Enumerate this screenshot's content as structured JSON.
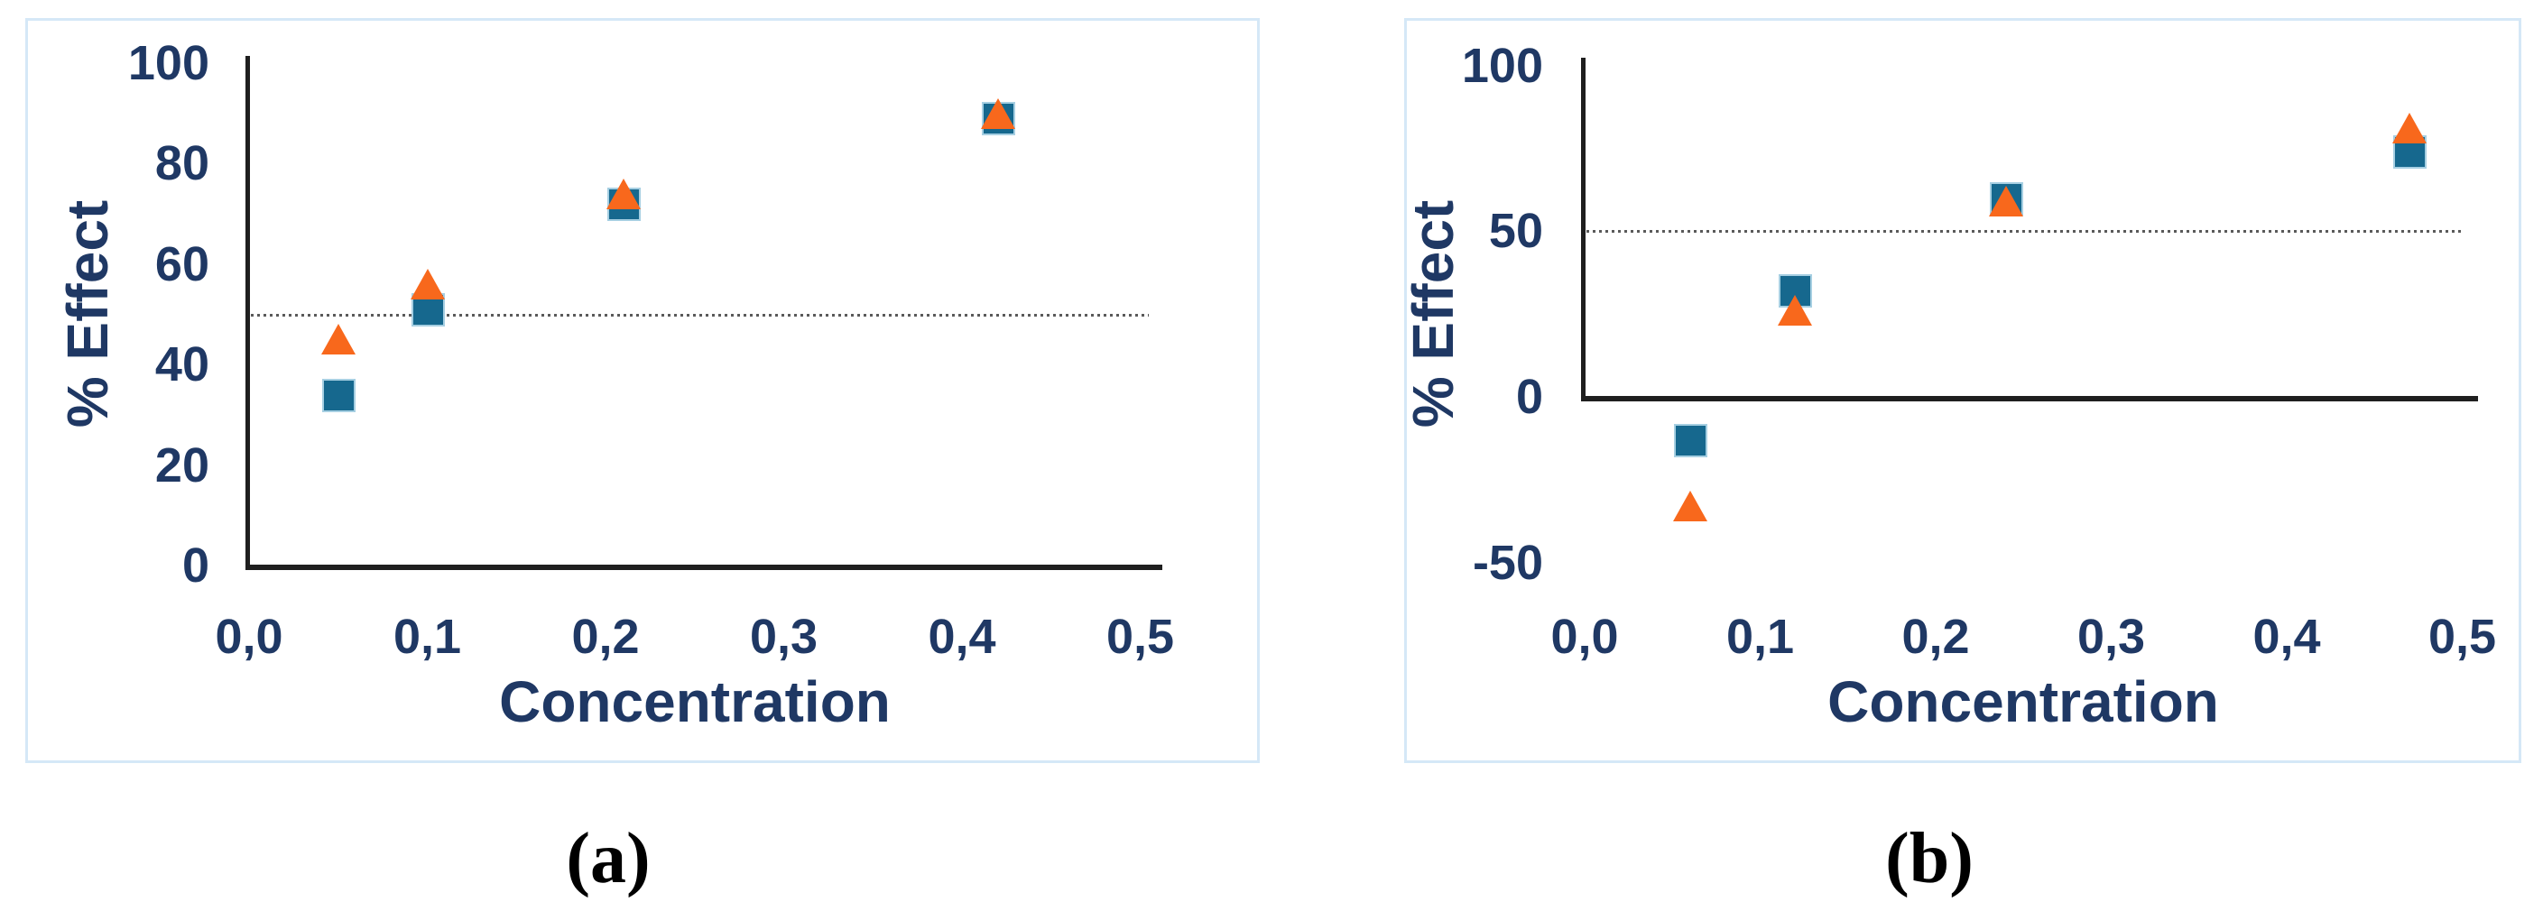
{
  "chart_data": [
    {
      "type": "scatter",
      "panel_label": "(a)",
      "xlabel": "Concentration",
      "ylabel": "% Effect",
      "xlim": [
        0,
        0.5
      ],
      "ylim": [
        0,
        100
      ],
      "x_tick_labels": [
        "0,0",
        "0,1",
        "0,2",
        "0,3",
        "0,4",
        "0,5"
      ],
      "x_tick_values": [
        0,
        0.1,
        0.2,
        0.3,
        0.4,
        0.5
      ],
      "y_tick_labels": [
        "100",
        "80",
        "60",
        "40",
        "20",
        "0"
      ],
      "y_tick_values": [
        100,
        80,
        60,
        40,
        20,
        0
      ],
      "reference_line": {
        "y": 50,
        "style": "dotted",
        "color": "#5a5a5a"
      },
      "grid": false,
      "legend": "none",
      "series": [
        {
          "name": "square-series",
          "marker": "square",
          "color": "#16688e",
          "points": [
            {
              "x": 0.05,
              "y": 34
            },
            {
              "x": 0.1,
              "y": 51
            },
            {
              "x": 0.21,
              "y": 72
            },
            {
              "x": 0.42,
              "y": 89
            }
          ]
        },
        {
          "name": "triangle-series",
          "marker": "triangle",
          "color": "#f8681c",
          "points": [
            {
              "x": 0.05,
              "y": 45
            },
            {
              "x": 0.1,
              "y": 56
            },
            {
              "x": 0.21,
              "y": 74
            },
            {
              "x": 0.42,
              "y": 90
            }
          ]
        }
      ]
    },
    {
      "type": "scatter",
      "panel_label": "(b)",
      "xlabel": "Concentration",
      "ylabel": "% Effect",
      "xlim": [
        0,
        0.5
      ],
      "ylim": [
        -50,
        100
      ],
      "x_tick_labels": [
        "0,0",
        "0,1",
        "0,2",
        "0,3",
        "0,4",
        "0,5"
      ],
      "x_tick_values": [
        0,
        0.1,
        0.2,
        0.3,
        0.4,
        0.5
      ],
      "y_tick_labels": [
        "100",
        "50",
        "0",
        "-50"
      ],
      "y_tick_values": [
        100,
        50,
        0,
        -50
      ],
      "reference_line": {
        "y": 50,
        "style": "dotted",
        "color": "#5a5a5a"
      },
      "grid": false,
      "legend": "none",
      "series": [
        {
          "name": "square-series",
          "marker": "square",
          "color": "#16688e",
          "points": [
            {
              "x": 0.06,
              "y": -13
            },
            {
              "x": 0.12,
              "y": 32
            },
            {
              "x": 0.24,
              "y": 60
            },
            {
              "x": 0.47,
              "y": 74
            }
          ]
        },
        {
          "name": "triangle-series",
          "marker": "triangle",
          "color": "#f8681c",
          "points": [
            {
              "x": 0.06,
              "y": -33
            },
            {
              "x": 0.12,
              "y": 26
            },
            {
              "x": 0.24,
              "y": 59
            },
            {
              "x": 0.47,
              "y": 81
            }
          ]
        }
      ]
    }
  ]
}
